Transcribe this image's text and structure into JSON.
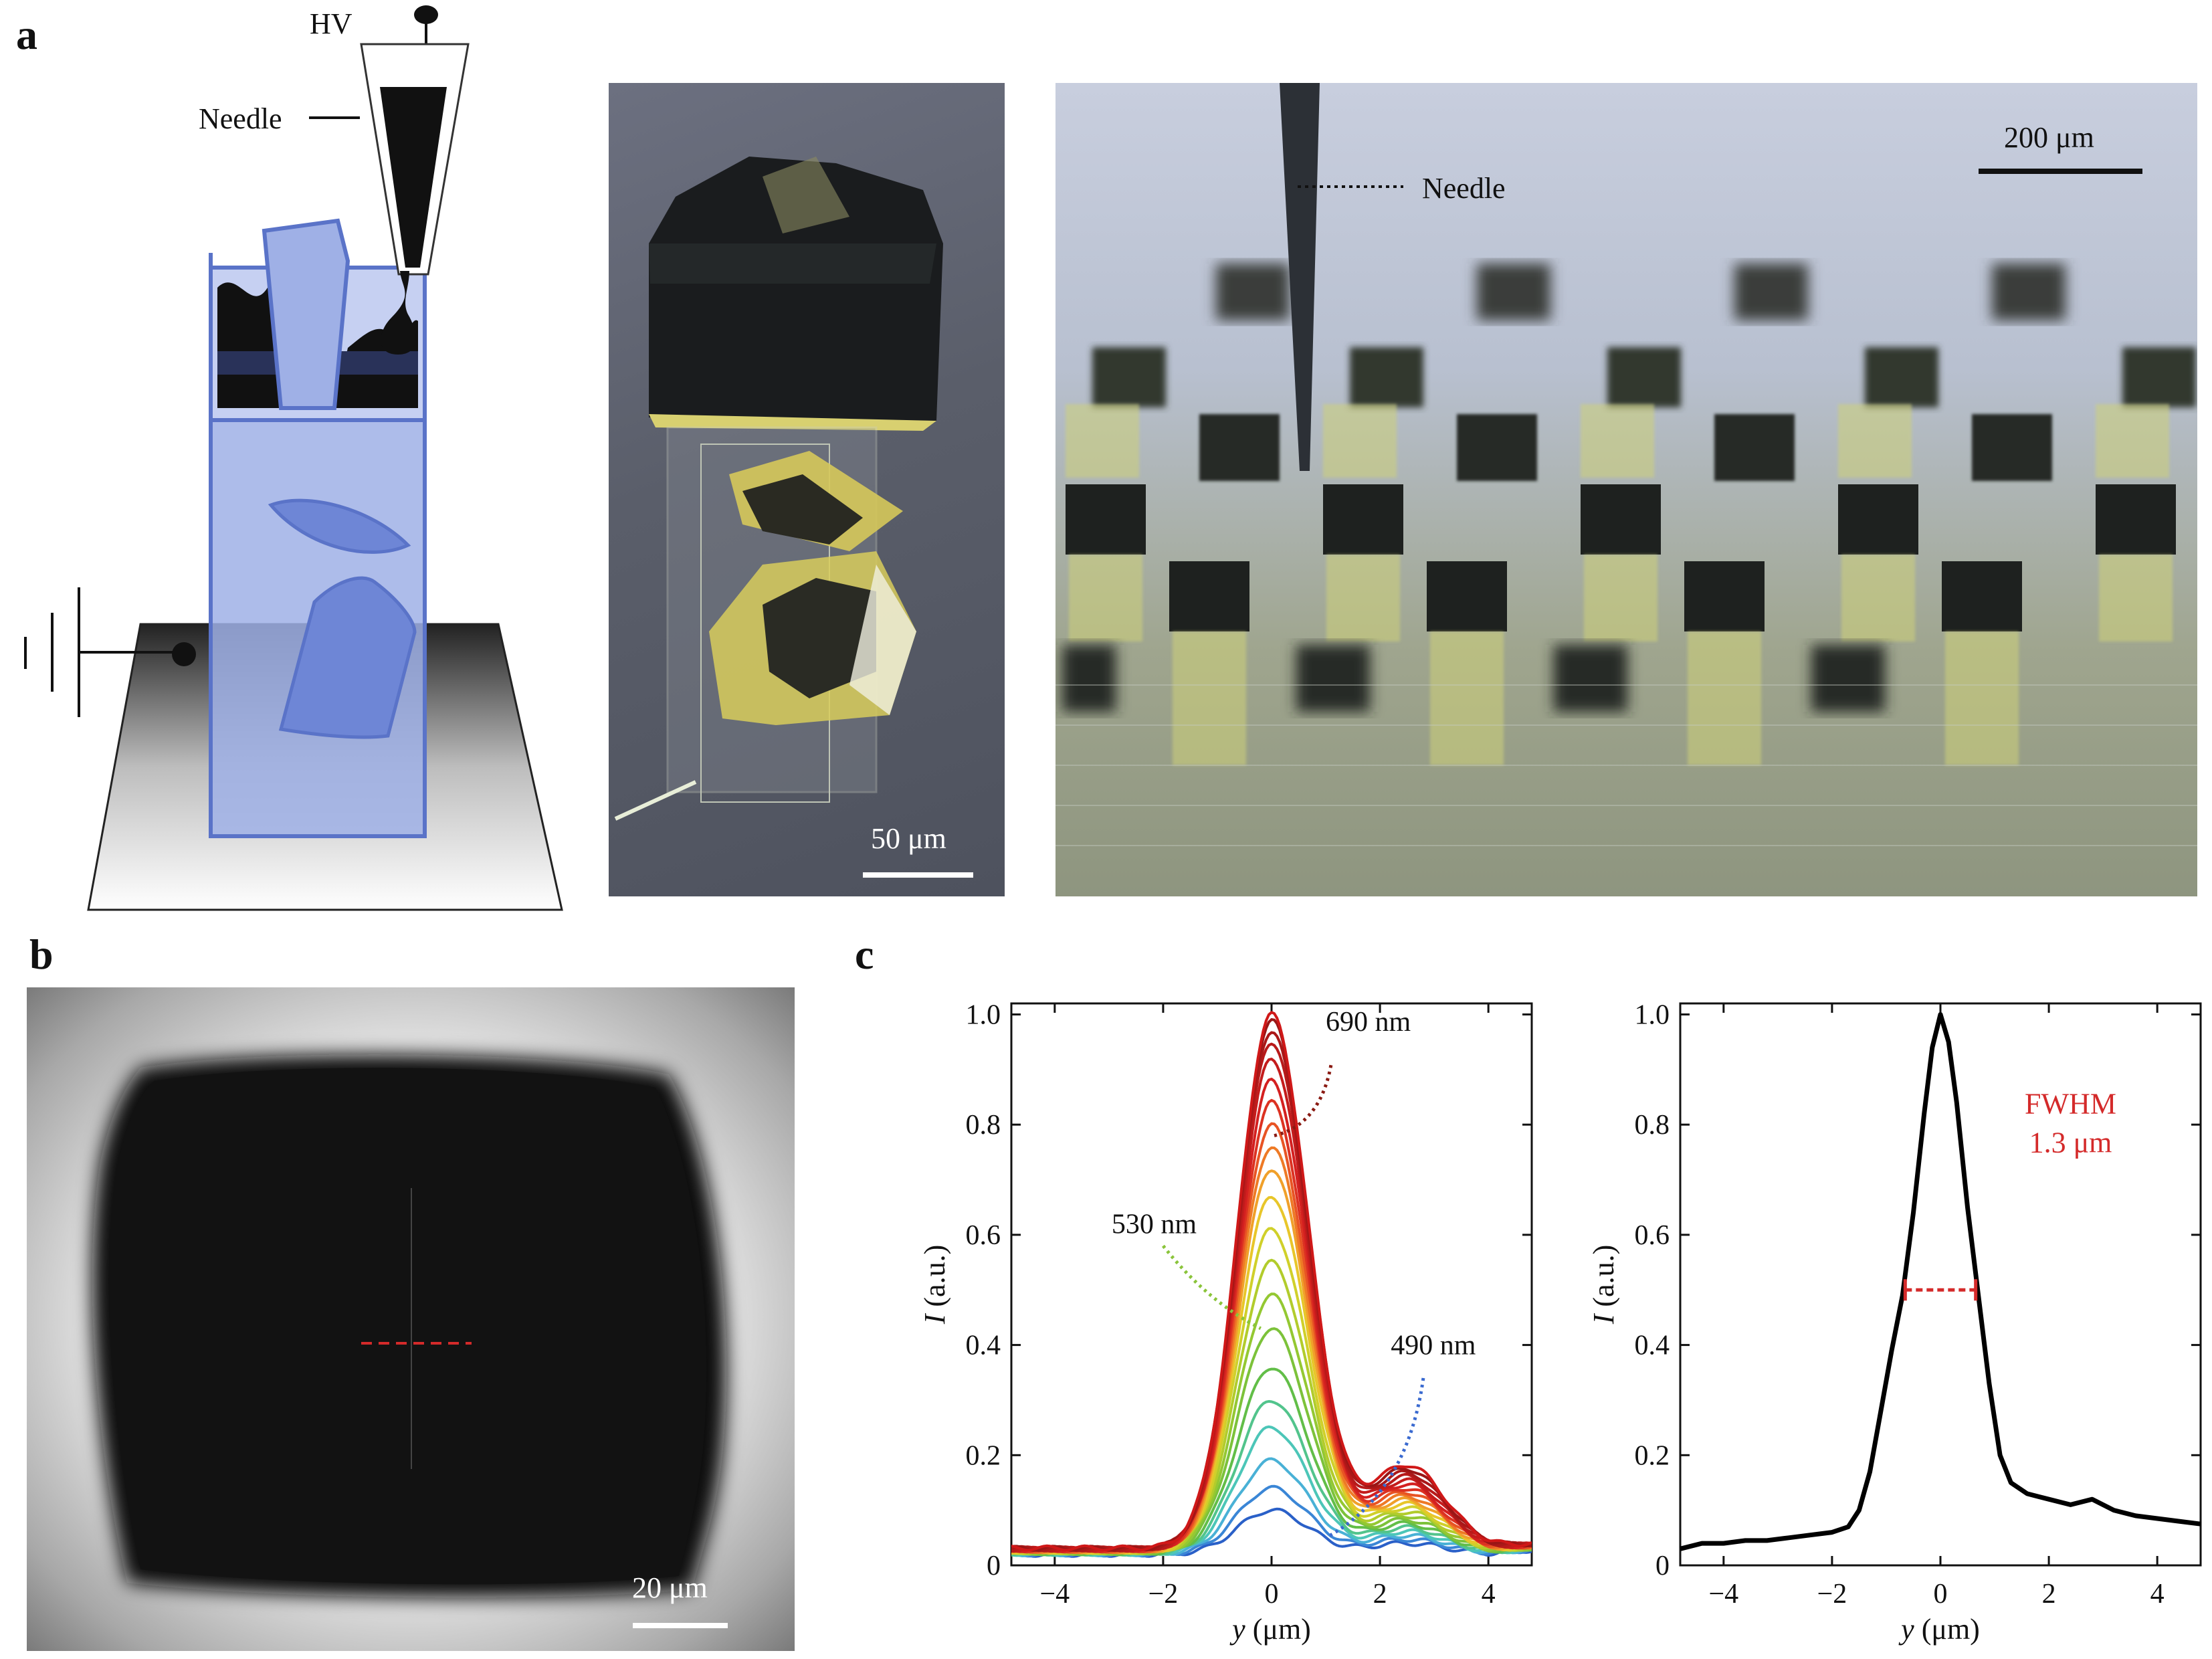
{
  "panel_labels": {
    "a": "a",
    "b": "b",
    "c": "c"
  },
  "schematic": {
    "hv_label": "HV",
    "needle_label": "Needle"
  },
  "photo_crystal": {
    "scale_label": "50 μm"
  },
  "photo_array": {
    "needle_label": "Needle",
    "scale_label": "200 μm"
  },
  "photo_fiber": {
    "scale_label": "20 μm"
  },
  "colors": {
    "blue_fill": "#9fb0e6",
    "blue_edge": "#5a73c8",
    "red_accent": "#d42a2a",
    "curve_black": "#000000"
  },
  "chart_data": [
    {
      "type": "line",
      "xlabel_var": "y",
      "xlabel_unit": " (μm)",
      "ylabel_var": "I",
      "ylabel_unit": " (a.u.)",
      "xlim": [
        -4.8,
        4.8
      ],
      "ylim": [
        0,
        1.02
      ],
      "xticks": [
        -4,
        -2,
        0,
        2,
        4
      ],
      "xtick_labels": [
        "−4",
        "−2",
        "0",
        "2",
        "4"
      ],
      "yticks": [
        0,
        0.2,
        0.4,
        0.6,
        0.8,
        1.0
      ],
      "ytick_labels": [
        "0",
        "0.2",
        "0.4",
        "0.6",
        "0.8",
        "1.0"
      ],
      "annotations": [
        {
          "text": "690 nm",
          "x": 1.0,
          "y": 0.79,
          "color": "#8a1a12"
        },
        {
          "text": "530 nm",
          "x": -0.2,
          "y": 0.43,
          "color": "#8ac43a"
        },
        {
          "text": "490 nm",
          "x": 1.0,
          "y": 0.05,
          "color": "#3a6ad0"
        }
      ],
      "series": [
        {
          "peak": 0.1,
          "color": "#2a60c8"
        },
        {
          "peak": 0.14,
          "color": "#3a86d6"
        },
        {
          "peak": 0.19,
          "color": "#49b1d6"
        },
        {
          "peak": 0.25,
          "color": "#4cc6b8"
        },
        {
          "peak": 0.3,
          "color": "#52c48c"
        },
        {
          "peak": 0.36,
          "color": "#62be48"
        },
        {
          "peak": 0.43,
          "color": "#7cc23a"
        },
        {
          "peak": 0.49,
          "color": "#94c832"
        },
        {
          "peak": 0.55,
          "color": "#b2cc2c"
        },
        {
          "peak": 0.61,
          "color": "#d0d02a"
        },
        {
          "peak": 0.67,
          "color": "#e8c62a"
        },
        {
          "peak": 0.72,
          "color": "#f0a02a"
        },
        {
          "peak": 0.76,
          "color": "#ee7a26"
        },
        {
          "peak": 0.8,
          "color": "#e85424"
        },
        {
          "peak": 0.84,
          "color": "#dc3222"
        },
        {
          "peak": 0.88,
          "color": "#d42020"
        },
        {
          "peak": 0.92,
          "color": "#c41c1c"
        },
        {
          "peak": 0.95,
          "color": "#b81a1a"
        },
        {
          "peak": 0.97,
          "color": "#aa1818"
        },
        {
          "peak": 0.99,
          "color": "#9a1616"
        },
        {
          "peak": 1.0,
          "color": "#d01818"
        }
      ]
    },
    {
      "type": "line",
      "xlabel_var": "y",
      "xlabel_unit": " (μm)",
      "ylabel_var": "I",
      "ylabel_unit": " (a.u.)",
      "xlim": [
        -4.8,
        4.8
      ],
      "ylim": [
        0,
        1.02
      ],
      "xticks": [
        -4,
        -2,
        0,
        2,
        4
      ],
      "xtick_labels": [
        "−4",
        "−2",
        "0",
        "2",
        "4"
      ],
      "yticks": [
        0,
        0.2,
        0.4,
        0.6,
        0.8,
        1.0
      ],
      "ytick_labels": [
        "0",
        "0.2",
        "0.4",
        "0.6",
        "0.8",
        "1.0"
      ],
      "annotation_line1": "FWHM",
      "annotation_line2": "1.3 μm",
      "fwhm": {
        "x1": -0.65,
        "x2": 0.65,
        "y": 0.5
      },
      "points": [
        [
          -4.8,
          0.03
        ],
        [
          -4.4,
          0.04
        ],
        [
          -4.0,
          0.04
        ],
        [
          -3.6,
          0.045
        ],
        [
          -3.2,
          0.045
        ],
        [
          -2.8,
          0.05
        ],
        [
          -2.4,
          0.055
        ],
        [
          -2.0,
          0.06
        ],
        [
          -1.7,
          0.07
        ],
        [
          -1.5,
          0.1
        ],
        [
          -1.3,
          0.17
        ],
        [
          -1.1,
          0.28
        ],
        [
          -0.9,
          0.39
        ],
        [
          -0.7,
          0.49
        ],
        [
          -0.5,
          0.64
        ],
        [
          -0.3,
          0.82
        ],
        [
          -0.15,
          0.94
        ],
        [
          0.0,
          1.0
        ],
        [
          0.15,
          0.95
        ],
        [
          0.3,
          0.84
        ],
        [
          0.5,
          0.65
        ],
        [
          0.7,
          0.49
        ],
        [
          0.9,
          0.33
        ],
        [
          1.1,
          0.2
        ],
        [
          1.3,
          0.15
        ],
        [
          1.6,
          0.13
        ],
        [
          2.0,
          0.12
        ],
        [
          2.4,
          0.11
        ],
        [
          2.8,
          0.12
        ],
        [
          3.2,
          0.1
        ],
        [
          3.6,
          0.09
        ],
        [
          4.0,
          0.085
        ],
        [
          4.4,
          0.08
        ],
        [
          4.8,
          0.075
        ]
      ]
    }
  ]
}
